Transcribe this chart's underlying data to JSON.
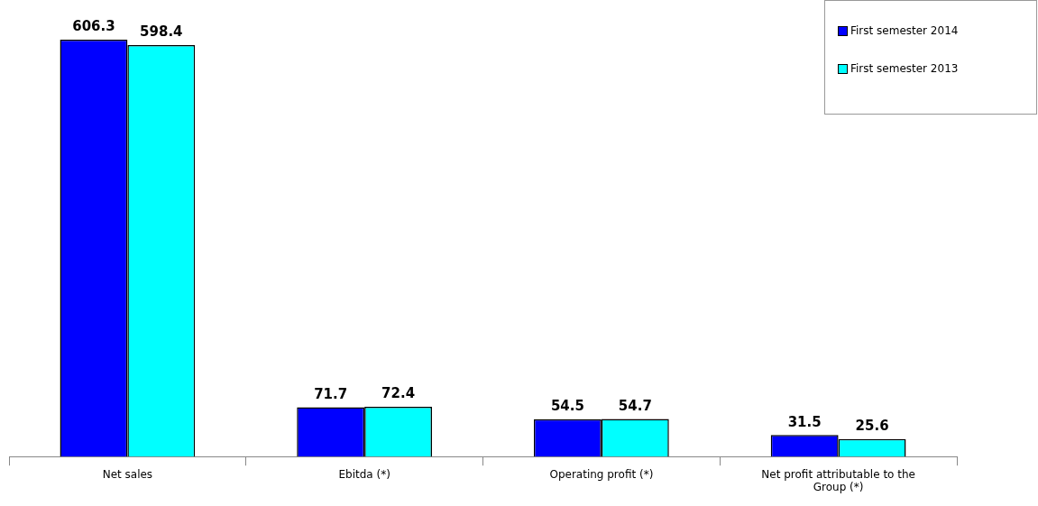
{
  "chart_data": {
    "type": "bar",
    "categories": [
      "Net sales",
      "Ebitda (*)",
      "Operating profit (*)",
      "Net profit attributable to the Group (*)"
    ],
    "series": [
      {
        "name": "First semester 2014",
        "color": "#0000ff",
        "values": [
          606.3,
          71.7,
          54.5,
          31.5
        ]
      },
      {
        "name": "First semester 2013",
        "color": "#00ffff",
        "values": [
          598.4,
          72.4,
          54.7,
          25.6
        ]
      }
    ],
    "data_labels": true,
    "legend": "top right",
    "grid": false
  }
}
